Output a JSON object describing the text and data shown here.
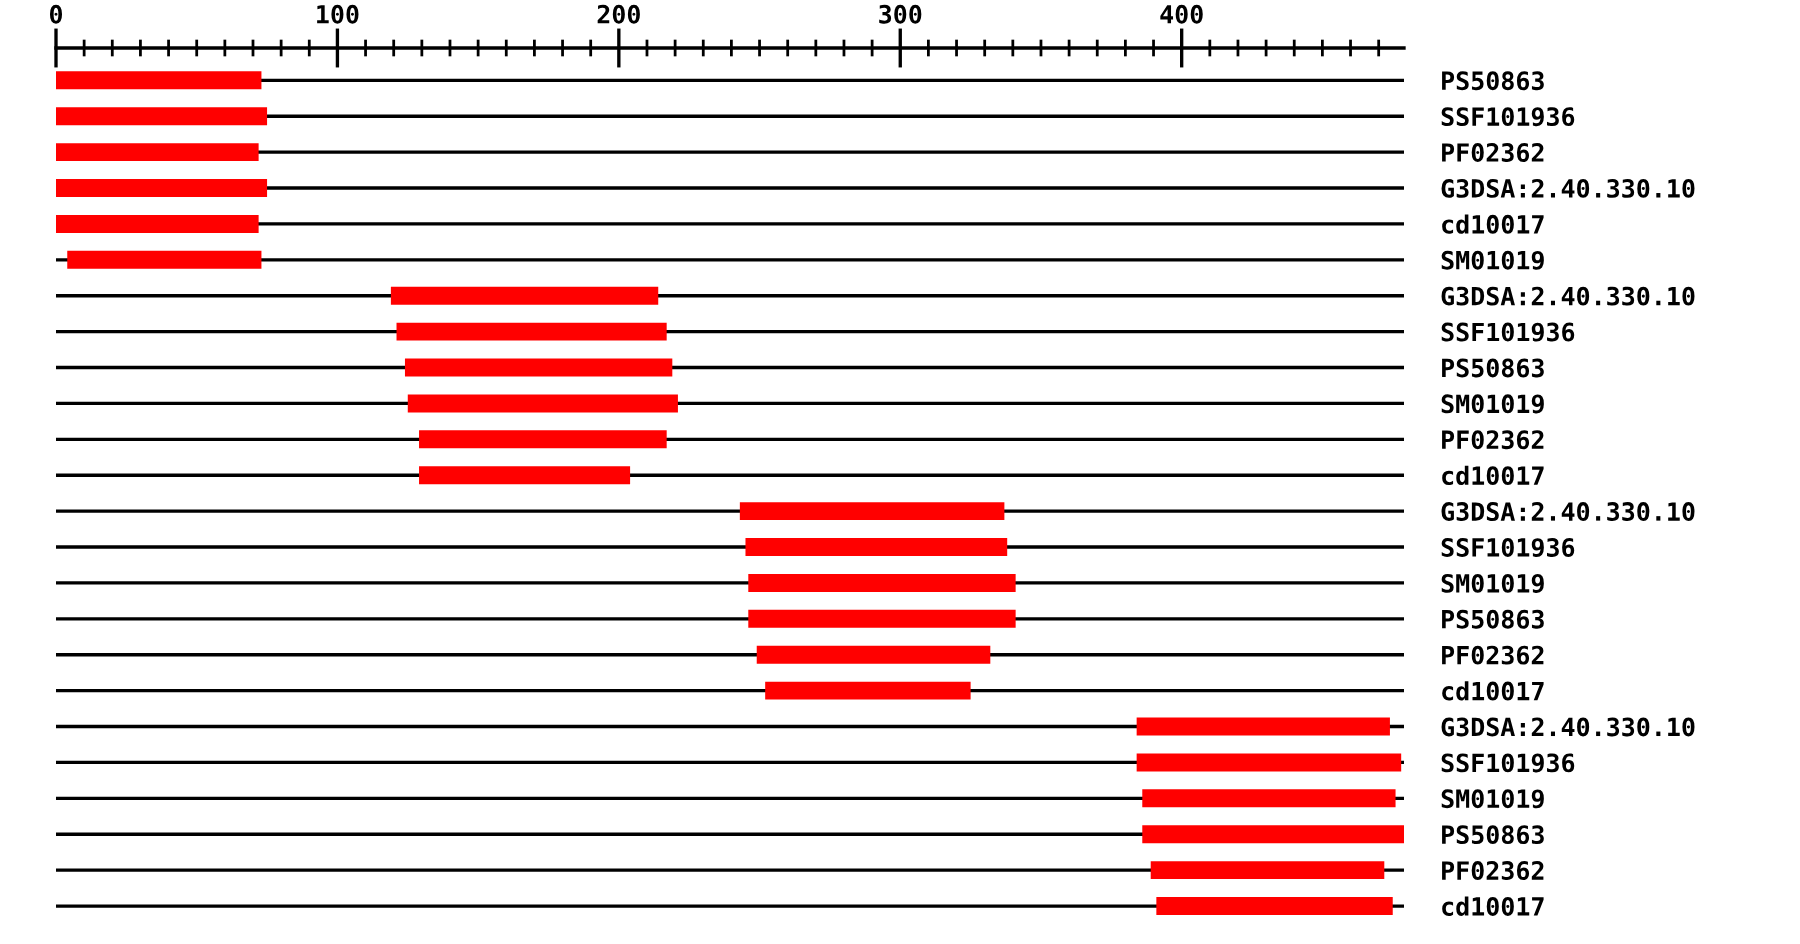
{
  "chart_data": {
    "type": "bar",
    "orientation": "horizontal",
    "grid": "y",
    "categories": [
      "PS50863",
      "SSF101936",
      "PF02362",
      "G3DSA:2.40.330.10",
      "cd10017",
      "SM01019",
      "G3DSA:2.40.330.10",
      "SSF101936",
      "PS50863",
      "SM01019",
      "PF02362",
      "cd10017",
      "G3DSA:2.40.330.10",
      "SSF101936",
      "SM01019",
      "PS50863",
      "PF02362",
      "cd10017",
      "G3DSA:2.40.330.10",
      "SSF101936",
      "SM01019",
      "PS50863",
      "PF02362",
      "cd10017"
    ],
    "base": [
      0,
      0,
      0,
      0,
      0,
      4,
      119,
      121,
      124,
      125,
      129,
      129,
      243,
      245,
      246,
      246,
      249,
      252,
      384,
      384,
      386,
      386,
      389,
      391
    ],
    "values": [
      73,
      75,
      72,
      75,
      72,
      69,
      95,
      96,
      95,
      96,
      88,
      75,
      94,
      93,
      95,
      95,
      83,
      73,
      90,
      94,
      90,
      93,
      83,
      84
    ],
    "color": "#ff0000",
    "xlim": [
      0,
      479
    ],
    "xticks": [
      0,
      {
        "value": 10,
        "label": null
      },
      {
        "value": 20,
        "label": null
      },
      {
        "value": 30,
        "label": null
      },
      {
        "value": 40,
        "label": null
      },
      {
        "value": 50,
        "label": null
      },
      {
        "value": 60,
        "label": null
      },
      {
        "value": 70,
        "label": null
      },
      {
        "value": 80,
        "label": null
      },
      {
        "value": 90,
        "label": null
      },
      100,
      {
        "value": 110,
        "label": null
      },
      {
        "value": 120,
        "label": null
      },
      {
        "value": 130,
        "label": null
      },
      {
        "value": 140,
        "label": null
      },
      {
        "value": 150,
        "label": null
      },
      {
        "value": 160,
        "label": null
      },
      {
        "value": 170,
        "label": null
      },
      {
        "value": 180,
        "label": null
      },
      {
        "value": 190,
        "label": null
      },
      200,
      {
        "value": 210,
        "label": null
      },
      {
        "value": 220,
        "label": null
      },
      {
        "value": 230,
        "label": null
      },
      {
        "value": 240,
        "label": null
      },
      {
        "value": 250,
        "label": null
      },
      {
        "value": 260,
        "label": null
      },
      {
        "value": 270,
        "label": null
      },
      {
        "value": 280,
        "label": null
      },
      {
        "value": 290,
        "label": null
      },
      300,
      {
        "value": 310,
        "label": null
      },
      {
        "value": 320,
        "label": null
      },
      {
        "value": 330,
        "label": null
      },
      {
        "value": 340,
        "label": null
      },
      {
        "value": 350,
        "label": null
      },
      {
        "value": 360,
        "label": null
      },
      {
        "value": 370,
        "label": null
      },
      {
        "value": 380,
        "label": null
      },
      {
        "value": 390,
        "label": null
      },
      400,
      {
        "value": 410,
        "label": null
      },
      {
        "value": 420,
        "label": null
      },
      {
        "value": 430,
        "label": null
      },
      {
        "value": 440,
        "label": null
      },
      {
        "value": 450,
        "label": null
      },
      {
        "value": 460,
        "label": null
      },
      {
        "value": 470,
        "label": null
      }
    ]
  }
}
